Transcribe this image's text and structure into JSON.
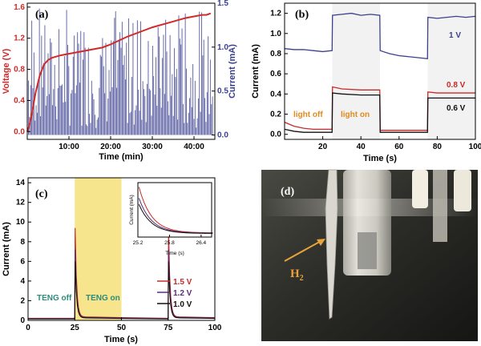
{
  "chart_data": [
    {
      "type": "line",
      "panel_label": "(a)",
      "xlabel": "Time (min)",
      "ylabel_left": "Voltage (V)",
      "ylabel_right": "Current (mA)",
      "xticks": [
        "10:00",
        "20:00",
        "30:00",
        "40:00"
      ],
      "xtick_minutes": [
        10,
        20,
        30,
        40
      ],
      "xlim": [
        0,
        45
      ],
      "ylim_left": [
        -0.1,
        1.65
      ],
      "ylim_right": [
        -0.05,
        1.5
      ],
      "yticks_left": [
        "0.0",
        "0.4",
        "0.8",
        "1.2",
        "1.6"
      ],
      "yticks_left_values": [
        0.0,
        0.4,
        0.8,
        1.2,
        1.6
      ],
      "yticks_right": [
        "0.0",
        "0.5",
        "1.0",
        "1.5"
      ],
      "yticks_right_values": [
        0.0,
        0.5,
        1.0,
        1.5
      ],
      "colors": {
        "voltage": "#d02a2a",
        "current": "#3a3f8f"
      },
      "voltage_series": {
        "x": [
          0,
          0.5,
          1,
          2,
          3,
          4,
          5,
          6,
          8,
          10,
          14,
          18,
          20,
          24,
          28,
          30,
          34,
          38,
          40,
          42,
          43,
          44
        ],
        "y": [
          0.0,
          0.08,
          0.2,
          0.5,
          0.72,
          0.86,
          0.92,
          0.95,
          0.98,
          1.0,
          1.04,
          1.08,
          1.12,
          1.22,
          1.3,
          1.34,
          1.4,
          1.46,
          1.48,
          1.5,
          1.5,
          1.52
        ]
      },
      "current_series": {
        "description_note": "",
        "pulse_count": 170,
        "max_value": 1.45,
        "baseline": 0.0
      }
    },
    {
      "type": "line",
      "panel_label": "(b)",
      "xlabel": "Time (s)",
      "ylabel": "Current (mA)",
      "xlim": [
        0,
        100
      ],
      "ylim": [
        -0.05,
        1.3
      ],
      "xticks": [
        "20",
        "40",
        "60",
        "80",
        "100"
      ],
      "xtick_values": [
        20,
        40,
        60,
        80,
        100
      ],
      "yticks": [
        "0.0",
        "0.2",
        "0.4",
        "0.6",
        "0.8",
        "1.0",
        "1.2"
      ],
      "ytick_values": [
        0.0,
        0.2,
        0.4,
        0.6,
        0.8,
        1.0,
        1.2
      ],
      "shaded_intervals": [
        [
          25,
          50
        ],
        [
          75,
          100
        ]
      ],
      "annotations": {
        "light_off": "light off",
        "light_on": "light on"
      },
      "annotation_colors": {
        "light_off": "#e08a1e",
        "light_on": "#e08a1e"
      },
      "series": [
        {
          "name": "1 V",
          "color": "#3a3f8f",
          "x": [
            0,
            5,
            10,
            15,
            20,
            24.9,
            25.1,
            30,
            35,
            40,
            45,
            49.9,
            50.1,
            55,
            60,
            65,
            70,
            74.9,
            75.1,
            80,
            85,
            90,
            95,
            100
          ],
          "y": [
            0.85,
            0.84,
            0.84,
            0.83,
            0.82,
            0.83,
            1.18,
            1.19,
            1.2,
            1.18,
            1.19,
            1.18,
            0.83,
            0.8,
            0.78,
            0.77,
            0.76,
            0.75,
            1.16,
            1.15,
            1.16,
            1.17,
            1.16,
            1.17
          ]
        },
        {
          "name": "0.8 V",
          "color": "#c62a2a",
          "x": [
            0,
            5,
            10,
            15,
            20,
            24.9,
            25.1,
            30,
            40,
            49.9,
            50.1,
            60,
            70,
            74.9,
            75.1,
            80,
            90,
            100
          ],
          "y": [
            0.12,
            0.08,
            0.06,
            0.05,
            0.05,
            0.05,
            0.47,
            0.45,
            0.44,
            0.44,
            0.04,
            0.04,
            0.04,
            0.04,
            0.42,
            0.41,
            0.41,
            0.41
          ]
        },
        {
          "name": "0.6 V",
          "color": "#111111",
          "x": [
            0,
            5,
            10,
            15,
            20,
            24.9,
            25.1,
            30,
            40,
            49.9,
            50.1,
            60,
            70,
            74.9,
            75.1,
            80,
            90,
            100
          ],
          "y": [
            0.05,
            0.03,
            0.02,
            0.02,
            0.02,
            0.02,
            0.41,
            0.4,
            0.39,
            0.39,
            0.02,
            0.02,
            0.02,
            0.02,
            0.36,
            0.36,
            0.36,
            0.36
          ]
        }
      ]
    },
    {
      "type": "line",
      "panel_label": "(c)",
      "xlabel": "Time (s)",
      "ylabel": "Current (mA)",
      "xlim": [
        0,
        100
      ],
      "ylim": [
        0,
        14.5
      ],
      "xticks": [
        "0",
        "25",
        "50",
        "75",
        "100"
      ],
      "xtick_values": [
        0,
        25,
        50,
        75,
        100
      ],
      "yticks": [
        "0",
        "2",
        "4",
        "6",
        "8",
        "10",
        "12",
        "14"
      ],
      "ytick_values": [
        0,
        2,
        4,
        6,
        8,
        10,
        12,
        14
      ],
      "shaded_intervals": [
        [
          25,
          50
        ]
      ],
      "shade_color": "#f6e58c",
      "annotations": {
        "teng_off": "TENG off",
        "teng_on": "TENG on"
      },
      "annotation_colors": {
        "teng_off": "#2e8b7a",
        "teng_on": "#2e8b7a"
      },
      "series": [
        {
          "name": "1.5 V",
          "color": "#c62a2a",
          "spike_peak": 9.4,
          "baseline": 0.35
        },
        {
          "name": "1.2 V",
          "color": "#5a2a7a",
          "spike_peak": 7.2,
          "baseline": 0.3
        },
        {
          "name": "1.0 V",
          "color": "#111111",
          "spike_peak": 6.0,
          "baseline": 0.25
        }
      ],
      "spike_times": [
        25.2,
        75.2
      ],
      "inset": {
        "xlabel": "Time (s)",
        "ylabel": "Current (mA)",
        "xlim": [
          25.2,
          26.6
        ],
        "xticks": [
          "25.2",
          "25.8",
          "26.4"
        ],
        "xtick_values": [
          25.2,
          25.8,
          26.4
        ],
        "series_peaks": [
          9.4,
          7.2,
          6.0
        ]
      }
    }
  ],
  "photo_panel": {
    "panel_label": "(d)",
    "annotation": "H",
    "annotation_sub": "2",
    "annotation_color": "#e8a33a"
  }
}
